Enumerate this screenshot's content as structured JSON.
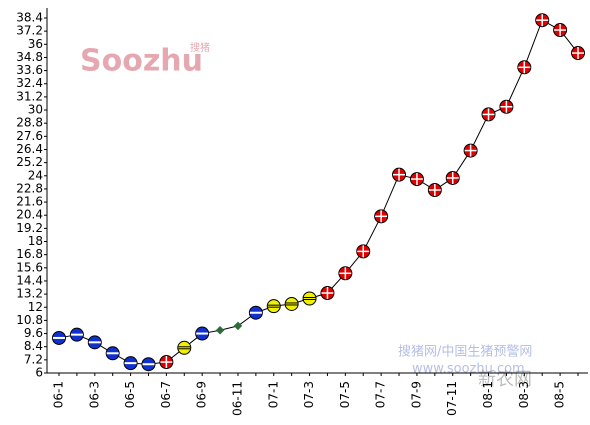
{
  "chart_data": {
    "type": "line",
    "categories": [
      "06-1",
      null,
      "06-3",
      null,
      "06-5",
      null,
      "06-7",
      null,
      "06-9",
      null,
      "06-11",
      null,
      "07-1",
      null,
      "07-3",
      null,
      "07-5",
      null,
      "07-7",
      null,
      "07-9",
      null,
      "07-11",
      null,
      "08-1",
      null,
      "08-3",
      null,
      "08-5",
      null
    ],
    "values": [
      9.2,
      9.5,
      8.8,
      7.8,
      6.9,
      6.8,
      7.0,
      8.3,
      9.6,
      9.9,
      10.3,
      11.5,
      12.1,
      12.3,
      12.8,
      13.3,
      15.1,
      17.1,
      20.3,
      24.1,
      23.7,
      22.7,
      23.8,
      26.3,
      29.6,
      30.3,
      33.9,
      38.2,
      37.3,
      35.2
    ],
    "markers": [
      "minus",
      "minus",
      "minus",
      "minus",
      "minus",
      "minus",
      "plus",
      "equal",
      "minus",
      "small",
      "small",
      "minus",
      "equal",
      "equal",
      "equal",
      "plus",
      "plus",
      "plus",
      "plus",
      "plus",
      "plus",
      "plus",
      "plus",
      "plus",
      "plus",
      "plus",
      "plus",
      "plus",
      "plus",
      "plus"
    ],
    "marker_colors": {
      "plus": "#e00000",
      "minus": "#1030d0",
      "equal": "#f0f000",
      "small": "#2e6b3a"
    },
    "line_color": "#000000",
    "ylim": [
      6,
      38.4
    ],
    "yticks": [
      6,
      7.2,
      8.4,
      9.6,
      10.8,
      12,
      13.2,
      14.4,
      15.6,
      16.8,
      18,
      19.2,
      20.4,
      21.6,
      22.8,
      24,
      25.2,
      26.4,
      27.6,
      28.8,
      30,
      31.2,
      32.4,
      33.6,
      34.8,
      36,
      37.2,
      38.4
    ],
    "watermarks": {
      "logo": "Soozhu",
      "logo_cn": "搜猪",
      "site": "搜猪网/中国生猪预警网",
      "url": "www.soozhu.com",
      "partner": "新农网"
    }
  }
}
